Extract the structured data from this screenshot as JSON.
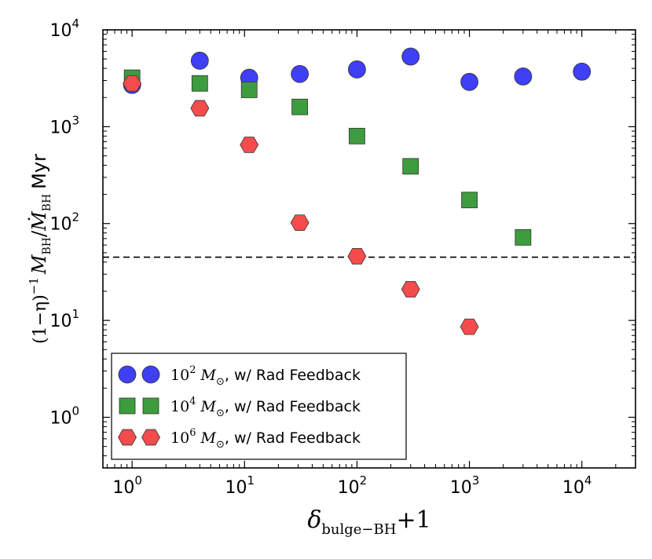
{
  "chart_data": {
    "type": "scatter",
    "x_scale": "log",
    "y_scale": "log",
    "xlim": [
      0.55,
      30000
    ],
    "ylim": [
      0.3,
      10000
    ],
    "x_ticks": [
      {
        "value": 1,
        "base": "10",
        "exp": "0"
      },
      {
        "value": 10,
        "base": "10",
        "exp": "1"
      },
      {
        "value": 100,
        "base": "10",
        "exp": "2"
      },
      {
        "value": 1000,
        "base": "10",
        "exp": "3"
      },
      {
        "value": 10000,
        "base": "10",
        "exp": "4"
      }
    ],
    "y_ticks": [
      {
        "value": 1,
        "base": "10",
        "exp": "0"
      },
      {
        "value": 10,
        "base": "10",
        "exp": "1"
      },
      {
        "value": 100,
        "base": "10",
        "exp": "2"
      },
      {
        "value": 1000,
        "base": "10",
        "exp": "3"
      },
      {
        "value": 10000,
        "base": "10",
        "exp": "4"
      }
    ],
    "xlabel": {
      "symbol": "δ",
      "subscript": "bulge−BH",
      "suffix": "+1"
    },
    "ylabel": {
      "prefix": "(1−η)",
      "sup": "−1",
      "numer": "M",
      "numer_sub": "BH",
      "slash": "/",
      "denom": "Ṁ",
      "denom_sub": "BH",
      "unit": "Myr"
    },
    "reference_line": {
      "y": 45,
      "style": "dashed",
      "color": "#000000"
    },
    "series": [
      {
        "name": "10^2 M_sun, w/ Rad Feedback",
        "marker": "circle",
        "color": "#3f3ff5",
        "x": [
          1,
          4,
          11,
          31,
          100,
          300,
          1000,
          3000,
          10000
        ],
        "y": [
          2700,
          4800,
          3200,
          3500,
          3900,
          5300,
          2900,
          3300,
          3700
        ]
      },
      {
        "name": "10^4 M_sun, w/ Rad Feedback",
        "marker": "square",
        "color": "#3d9c3d",
        "x": [
          1,
          4,
          11,
          31,
          100,
          300,
          1000,
          3000
        ],
        "y": [
          3200,
          2800,
          2400,
          1600,
          800,
          390,
          175,
          72
        ]
      },
      {
        "name": "10^6 M_sun, w/ Rad Feedback",
        "marker": "hexagon",
        "color": "#f44c4c",
        "x": [
          1,
          4,
          11,
          31,
          100,
          300,
          1000
        ],
        "y": [
          2800,
          1550,
          650,
          102,
          46,
          21,
          8.6
        ]
      }
    ],
    "legend": {
      "location": "lower-left",
      "entries": [
        {
          "exp": "2",
          "suffix": ", w/ Rad Feedback"
        },
        {
          "exp": "4",
          "suffix": ", w/ Rad Feedback"
        },
        {
          "exp": "6",
          "suffix": ", w/ Rad Feedback"
        }
      ],
      "mass_base": "10",
      "mass_symbol": "M",
      "mass_sub": "⊙"
    }
  }
}
